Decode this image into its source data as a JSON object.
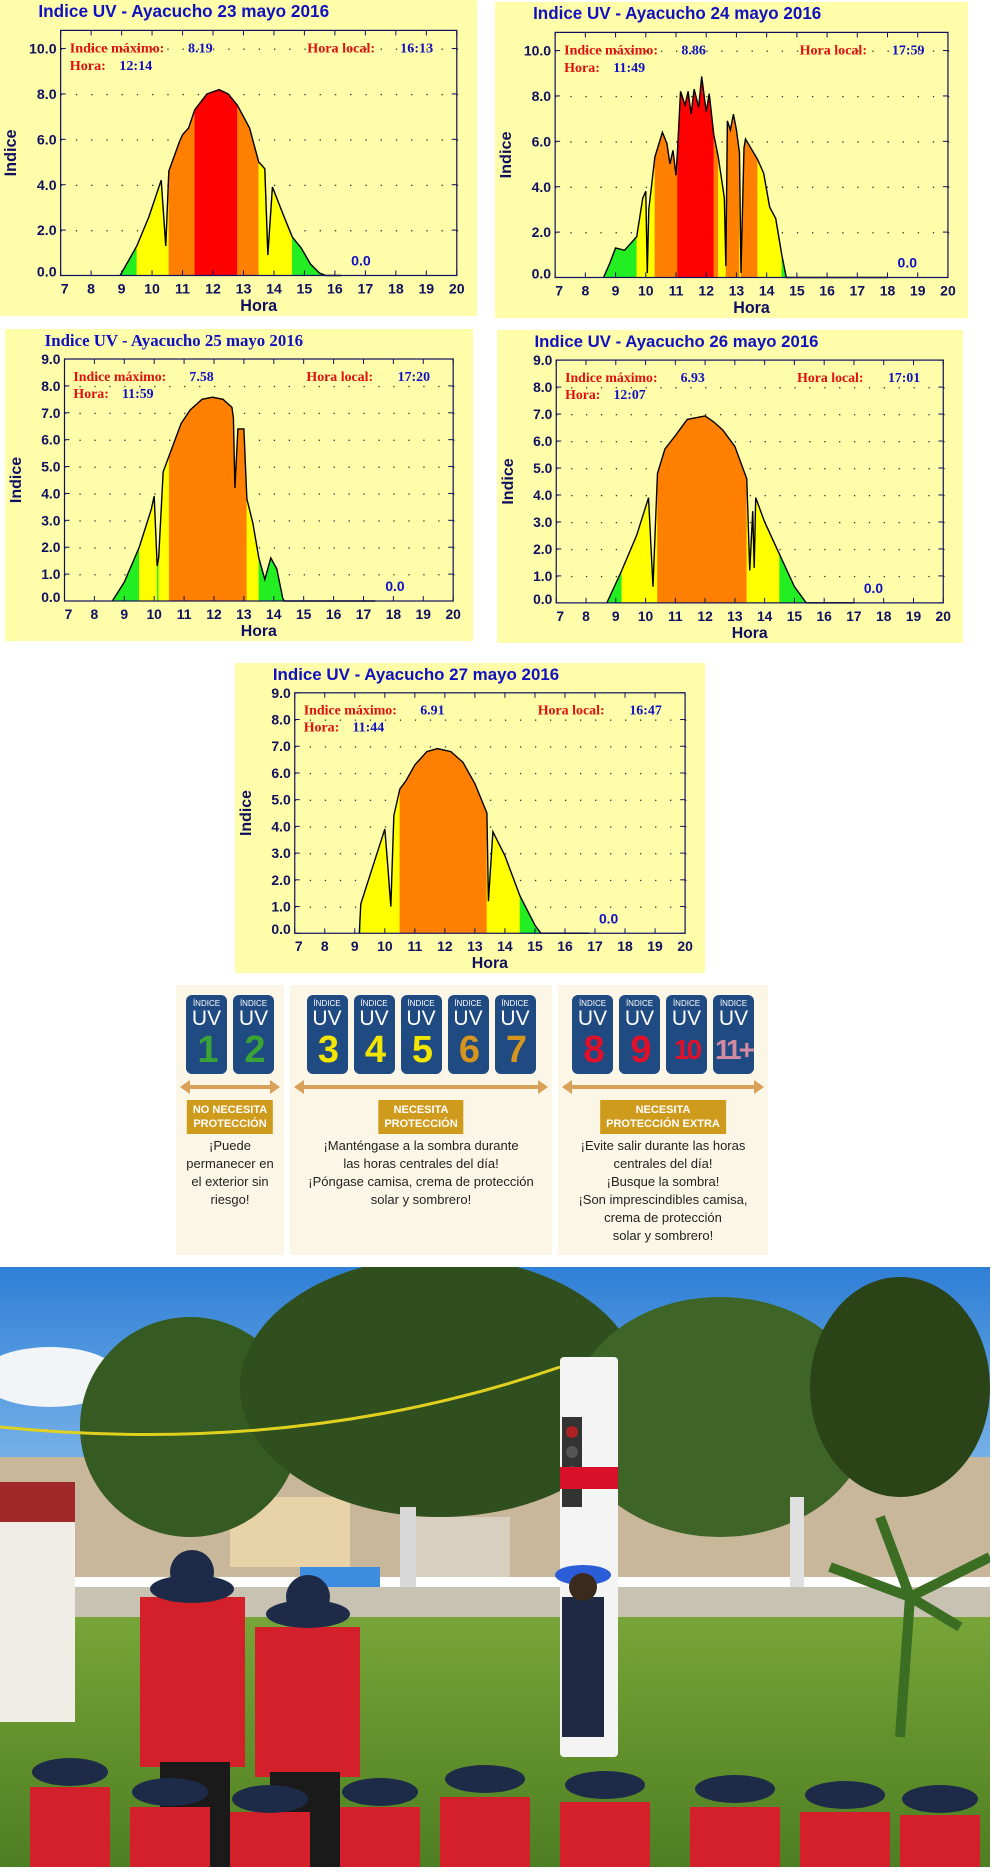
{
  "charts": [
    {
      "title": "Indice UV - Ayacucho   23 mayo 2016",
      "max_label": "Indice máximo:",
      "max_value": "8.19",
      "hour_label": "Hora:",
      "hour_value": "12:14",
      "local_label": "Hora local:",
      "local_value": "16:13",
      "current": "0.0"
    },
    {
      "title": "Indice UV - Ayacucho   24 mayo 2016",
      "max_label": "Indice máximo:",
      "max_value": "8.86",
      "hour_label": "Hora:",
      "hour_value": "11:49",
      "local_label": "Hora local:",
      "local_value": "17:59",
      "current": "0.0"
    },
    {
      "title": "Indice UV - Ayacucho   25 mayo 2016",
      "max_label": "Indice máximo:",
      "max_value": "7.58",
      "hour_label": "Hora:",
      "hour_value": "11:59",
      "local_label": "Hora local:",
      "local_value": "17:20",
      "current": "0.0"
    },
    {
      "title": "Indice UV - Ayacucho   26 mayo 2016",
      "max_label": "Indice máximo:",
      "max_value": "6.93",
      "hour_label": "Hora:",
      "hour_value": "12:07",
      "local_label": "Hora local:",
      "local_value": "17:01",
      "current": "0.0"
    },
    {
      "title": "Indice UV - Ayacucho   27 mayo 2016",
      "max_label": "Indice máximo:",
      "max_value": "6.91",
      "hour_label": "Hora:",
      "hour_value": "11:44",
      "local_label": "Hora local:",
      "local_value": "16:47",
      "current": "0.0"
    }
  ],
  "chart_data": [
    {
      "type": "area",
      "title": "Indice UV - Ayacucho   23 mayo 2016",
      "xlabel": "Hora",
      "ylabel": "Indice",
      "xlim": [
        7,
        20
      ],
      "ylim": [
        0,
        10.8
      ],
      "xticks": [
        "7",
        "8",
        "9",
        "10",
        "11",
        "12",
        "13",
        "14",
        "15",
        "16",
        "17",
        "18",
        "19",
        "20"
      ],
      "yticks": [
        "0.0",
        "2.0",
        "4.0",
        "6.0",
        "8.0",
        "10.0"
      ],
      "ytick_step": 2,
      "grid": "dotted",
      "x": [
        8.95,
        9.5,
        9.9,
        10.3,
        10.45,
        10.55,
        10.9,
        11.0,
        11.2,
        11.4,
        11.8,
        12.2,
        12.5,
        12.8,
        13.2,
        13.5,
        13.7,
        13.8,
        13.95,
        14.3,
        14.6,
        14.9,
        15.2,
        15.5,
        15.7,
        16.2
      ],
      "y": [
        0,
        1.3,
        2.6,
        4.2,
        1.3,
        4.6,
        5.9,
        6.2,
        6.5,
        7.3,
        8.0,
        8.19,
        8.0,
        7.5,
        6.5,
        5.0,
        4.7,
        0.9,
        3.9,
        2.7,
        1.7,
        1.2,
        0.5,
        0.1,
        0,
        0
      ]
    },
    {
      "type": "area",
      "title": "Indice UV - Ayacucho   24 mayo 2016",
      "xlabel": "Hora",
      "ylabel": "Indice",
      "xlim": [
        7,
        20
      ],
      "ylim": [
        0,
        10.8
      ],
      "xticks": [
        "7",
        "8",
        "9",
        "10",
        "11",
        "12",
        "13",
        "14",
        "15",
        "16",
        "17",
        "18",
        "19",
        "20"
      ],
      "yticks": [
        "0.0",
        "2.0",
        "4.0",
        "6.0",
        "8.0",
        "10.0"
      ],
      "ytick_step": 2,
      "grid": "dotted",
      "x": [
        8.6,
        8.8,
        9.0,
        9.3,
        9.7,
        9.9,
        10.0,
        10.05,
        10.1,
        10.3,
        10.55,
        10.7,
        10.8,
        10.9,
        11.0,
        11.05,
        11.15,
        11.3,
        11.4,
        11.5,
        11.6,
        11.75,
        11.85,
        12.0,
        12.1,
        12.25,
        12.4,
        12.6,
        12.65,
        12.7,
        12.8,
        12.9,
        13.0,
        13.1,
        13.15,
        13.25,
        13.3,
        13.7,
        13.9,
        14.1,
        14.3,
        14.5,
        14.65,
        18.0
      ],
      "y": [
        0,
        0.6,
        1.3,
        1.2,
        1.8,
        3.5,
        3.8,
        0.2,
        3.0,
        5.3,
        6.4,
        5.9,
        5.0,
        5.6,
        4.5,
        5.6,
        8.2,
        7.6,
        8.2,
        7.2,
        8.3,
        7.5,
        8.86,
        7.3,
        8.1,
        6.3,
        5.3,
        3.5,
        0.5,
        6.9,
        6.5,
        7.2,
        6.5,
        5.5,
        0.2,
        5.7,
        6.1,
        5.2,
        4.6,
        3.1,
        2.6,
        1.0,
        0,
        0
      ]
    },
    {
      "type": "area",
      "title": "Indice UV - Ayacucho   25 mayo 2016",
      "xlabel": "Hora",
      "ylabel": "Indice",
      "xlim": [
        7,
        20
      ],
      "ylim": [
        0,
        9
      ],
      "xticks": [
        "7",
        "8",
        "9",
        "10",
        "11",
        "12",
        "13",
        "14",
        "15",
        "16",
        "17",
        "18",
        "19",
        "20"
      ],
      "yticks": [
        "0.0",
        "1.0",
        "2.0",
        "3.0",
        "4.0",
        "5.0",
        "6.0",
        "7.0",
        "8.0",
        "9.0"
      ],
      "ytick_step": 1,
      "grid": "dotted",
      "x": [
        8.6,
        9.0,
        9.5,
        9.9,
        10.0,
        10.1,
        10.15,
        10.3,
        10.5,
        10.7,
        10.9,
        11.2,
        11.6,
        11.95,
        12.3,
        12.6,
        12.65,
        12.7,
        12.8,
        13.0,
        13.1,
        13.3,
        13.5,
        13.7,
        13.9,
        14.1,
        14.3,
        14.35,
        17.4
      ],
      "y": [
        0,
        0.7,
        2.0,
        3.4,
        3.9,
        1.3,
        1.6,
        4.8,
        5.4,
        6.0,
        6.6,
        7.1,
        7.5,
        7.58,
        7.5,
        7.2,
        6.8,
        4.2,
        6.4,
        6.4,
        3.8,
        2.9,
        1.6,
        0.8,
        1.6,
        1.2,
        0.1,
        0,
        0
      ]
    },
    {
      "type": "area",
      "title": "Indice UV - Ayacucho   26 mayo 2016",
      "xlabel": "Hora",
      "ylabel": "Indice",
      "xlim": [
        7,
        20
      ],
      "ylim": [
        0,
        9
      ],
      "xticks": [
        "7",
        "8",
        "9",
        "10",
        "11",
        "12",
        "13",
        "14",
        "15",
        "16",
        "17",
        "18",
        "19",
        "20"
      ],
      "yticks": [
        "0.0",
        "1.0",
        "2.0",
        "3.0",
        "4.0",
        "5.0",
        "6.0",
        "7.0",
        "8.0",
        "9.0"
      ],
      "ytick_step": 1,
      "grid": "dotted",
      "x": [
        8.7,
        9.2,
        9.7,
        10.1,
        10.25,
        10.4,
        10.65,
        11.0,
        11.4,
        12.0,
        12.3,
        12.6,
        13.0,
        13.4,
        13.5,
        13.6,
        13.65,
        13.7,
        14.0,
        14.5,
        15.0,
        15.4,
        17.0
      ],
      "y": [
        0,
        1.2,
        2.5,
        3.9,
        0.6,
        4.8,
        5.7,
        6.2,
        6.8,
        6.93,
        6.7,
        6.4,
        5.8,
        4.6,
        1.2,
        3.4,
        1.3,
        3.9,
        3.0,
        1.8,
        0.6,
        0,
        0
      ]
    },
    {
      "type": "area",
      "title": "Indice UV - Ayacucho   27 mayo 2016",
      "xlabel": "Hora",
      "ylabel": "Indice",
      "xlim": [
        7,
        20
      ],
      "ylim": [
        0,
        9
      ],
      "xticks": [
        "7",
        "8",
        "9",
        "10",
        "11",
        "12",
        "13",
        "14",
        "15",
        "16",
        "17",
        "18",
        "19",
        "20"
      ],
      "yticks": [
        "0.0",
        "1.0",
        "2.0",
        "3.0",
        "4.0",
        "5.0",
        "6.0",
        "7.0",
        "8.0",
        "9.0"
      ],
      "ytick_step": 1,
      "grid": "dotted",
      "x": [
        9.15,
        9.2,
        9.6,
        10.0,
        10.1,
        10.2,
        10.3,
        10.5,
        10.7,
        11.0,
        11.4,
        11.75,
        12.2,
        12.6,
        13.0,
        13.4,
        13.45,
        13.6,
        14.0,
        14.5,
        15.0,
        15.2,
        16.8
      ],
      "y": [
        0,
        1.1,
        2.5,
        3.9,
        2.5,
        1.0,
        4.4,
        5.4,
        5.7,
        6.3,
        6.8,
        6.91,
        6.8,
        6.4,
        5.6,
        4.5,
        1.2,
        3.8,
        2.9,
        1.4,
        0.3,
        0,
        0
      ]
    }
  ],
  "colors": {
    "green": "#22ee22",
    "yellow": "#ffff00",
    "orange": "#ff8000",
    "red": "#ff0000",
    "panel": "#fdfdaa",
    "title": "#1010c0",
    "axis": "#101060"
  },
  "legend": {
    "card_top": "ÍNDICE",
    "card_uv": "UV",
    "groups": [
      {
        "levels": [
          {
            "n": "1",
            "color": "#3aa335"
          },
          {
            "n": "2",
            "color": "#3aa335"
          }
        ],
        "badge": [
          "NO NECESITA",
          "PROTECCIÓN"
        ],
        "text": [
          "¡Puede",
          "permanecer en",
          "el exterior sin",
          "riesgo!"
        ]
      },
      {
        "levels": [
          {
            "n": "3",
            "color": "#f2e600"
          },
          {
            "n": "4",
            "color": "#f2e600"
          },
          {
            "n": "5",
            "color": "#f2e600"
          },
          {
            "n": "6",
            "color": "#d6951c"
          },
          {
            "n": "7",
            "color": "#d6951c"
          }
        ],
        "badge": [
          "NECESITA",
          "PROTECCIÓN"
        ],
        "text": [
          "¡Manténgase a la sombra durante",
          "las horas centrales del día!",
          "¡Póngase camisa, crema de protección",
          "solar y sombrero!"
        ]
      },
      {
        "levels": [
          {
            "n": "8",
            "color": "#e0102a"
          },
          {
            "n": "9",
            "color": "#e0102a"
          },
          {
            "n": "10",
            "color": "#e0102a"
          },
          {
            "n": "11+",
            "color": "#d48aa0"
          }
        ],
        "badge": [
          "NECESITA",
          "PROTECCIÓN EXTRA"
        ],
        "text": [
          "¡Evite salir durante las horas",
          "centrales del día!",
          "¡Busque la sombra!",
          "¡Son imprescindibles camisa,",
          "crema de protección",
          "solar y sombrero!"
        ]
      }
    ]
  }
}
